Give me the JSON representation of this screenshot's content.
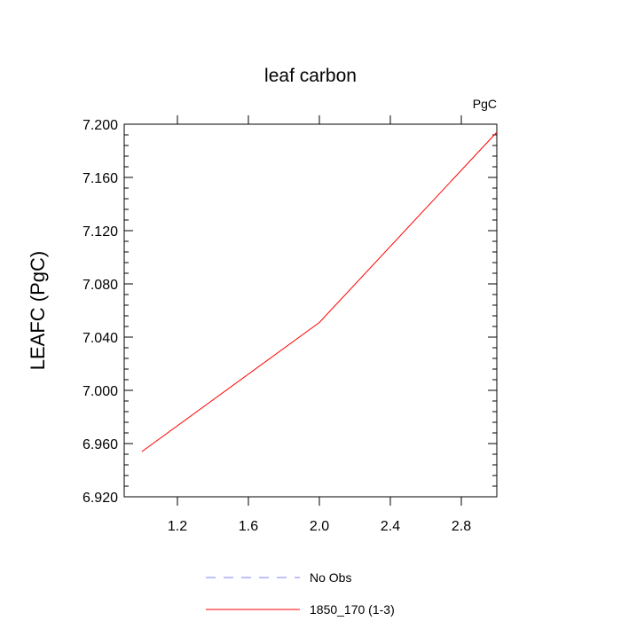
{
  "chart_data": {
    "type": "line",
    "title": "leaf carbon",
    "units_label": "PgC",
    "xlabel": "",
    "ylabel": "LEAFC  (PgC)",
    "xlim": [
      0.9,
      3.0
    ],
    "ylim": [
      6.92,
      7.2
    ],
    "x_ticks": [
      1.2,
      1.6,
      2.0,
      2.4,
      2.8
    ],
    "x_tick_labels": [
      "1.2",
      "1.6",
      "2.0",
      "2.4",
      "2.8"
    ],
    "y_ticks": [
      6.92,
      6.96,
      7.0,
      7.04,
      7.08,
      7.12,
      7.16,
      7.2
    ],
    "y_tick_labels": [
      "6.920",
      "6.960",
      "7.000",
      "7.040",
      "7.080",
      "7.120",
      "7.160",
      "7.200"
    ],
    "grid": false,
    "legend_position": "bottom",
    "series": [
      {
        "name": "No Obs",
        "x": [],
        "y": [],
        "color": "#8080ff",
        "dash": true
      },
      {
        "name": "1850_170 (1-3)",
        "x": [
          1.0,
          2.0,
          3.0
        ],
        "y": [
          6.954,
          7.051,
          7.194
        ],
        "color": "#ff0000",
        "dash": false
      }
    ]
  }
}
